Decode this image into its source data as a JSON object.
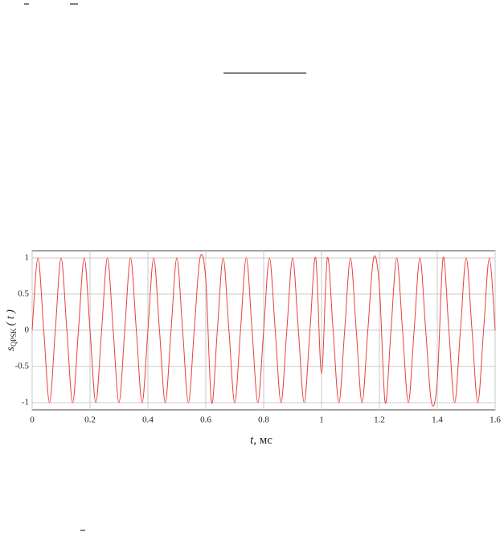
{
  "chart_data": {
    "type": "line",
    "xlabel": {
      "symbol": "t",
      "unit": ", мс"
    },
    "ylabel": {
      "symbol": "s",
      "subscript": "QPSK",
      "arg": "( t )"
    },
    "x": [
      0,
      0.02,
      0.04,
      0.06,
      0.08,
      0.1,
      0.12,
      0.14,
      0.16,
      0.18,
      0.2,
      0.22,
      0.24,
      0.26,
      0.28,
      0.3,
      0.32,
      0.34,
      0.36,
      0.38,
      0.4,
      0.42,
      0.44,
      0.46,
      0.48,
      0.5,
      0.52,
      0.54,
      0.56,
      0.58,
      0.6,
      0.62,
      0.64,
      0.66,
      0.68,
      0.7,
      0.72,
      0.74,
      0.76,
      0.78,
      0.8,
      0.82,
      0.84,
      0.86,
      0.88,
      0.9,
      0.92,
      0.94,
      0.96,
      0.98,
      1.0,
      1.02,
      1.04,
      1.06,
      1.08,
      1.1,
      1.12,
      1.14,
      1.16,
      1.18,
      1.2,
      1.22,
      1.24,
      1.26,
      1.28,
      1.3,
      1.32,
      1.34,
      1.36,
      1.38,
      1.4,
      1.42,
      1.44,
      1.46,
      1.48,
      1.5,
      1.52,
      1.54,
      1.56,
      1.58,
      1.6
    ],
    "series": [
      {
        "color": "#e8413c",
        "values": [
          0,
          1,
          0,
          -1,
          0,
          1,
          0,
          -1,
          0,
          1,
          0,
          -1,
          0,
          1,
          0,
          -1,
          0,
          1,
          0,
          -1,
          0,
          1,
          0,
          -1,
          0,
          1,
          0,
          -1,
          0,
          1,
          0.7,
          -1,
          0,
          1,
          0,
          -1,
          0,
          1,
          0,
          -1,
          0,
          1,
          0,
          -1,
          0,
          1,
          0,
          -1,
          0,
          1,
          -0.6,
          1,
          0,
          -1,
          0,
          1,
          0,
          -1,
          0,
          1,
          0.6,
          -1,
          0,
          1,
          0,
          -1,
          0,
          1,
          0,
          -1,
          -0.7,
          1,
          0,
          -1,
          0,
          1,
          0,
          -1,
          0,
          1,
          0
        ]
      }
    ],
    "xlim": [
      0,
      1.6
    ],
    "ylim": [
      -1.1,
      1.1
    ],
    "xticks": [
      0,
      0.2,
      0.4,
      0.6,
      0.8,
      1,
      1.2,
      1.4,
      1.6
    ],
    "yticks": [
      -1,
      -0.5,
      0,
      0.5,
      1
    ],
    "grid": true
  }
}
